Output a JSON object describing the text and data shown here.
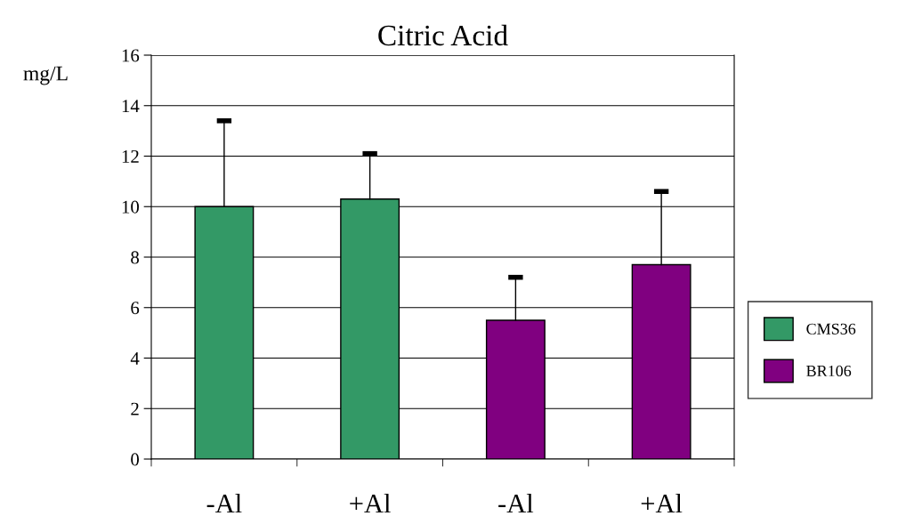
{
  "chart_data": {
    "type": "bar",
    "title": "Citric Acid",
    "ylabel": "mg/L",
    "categories": [
      "-Al",
      "+Al",
      "-Al",
      "+Al"
    ],
    "series": [
      {
        "name": "CMS36",
        "color": "#339966",
        "values": [
          10.0,
          10.3,
          null,
          null
        ],
        "errors": [
          [
            10.0,
            13.4
          ],
          [
            10.3,
            12.1
          ],
          null,
          null
        ]
      },
      {
        "name": "BR106",
        "color": "#800080",
        "values": [
          null,
          null,
          5.5,
          7.7
        ],
        "errors": [
          null,
          null,
          [
            5.5,
            7.2
          ],
          [
            7.7,
            10.6
          ]
        ]
      }
    ],
    "ylim": [
      0,
      16
    ],
    "yticks": [
      0,
      2,
      4,
      6,
      8,
      10,
      12,
      14,
      16
    ],
    "grid": "y",
    "legend": "right"
  }
}
